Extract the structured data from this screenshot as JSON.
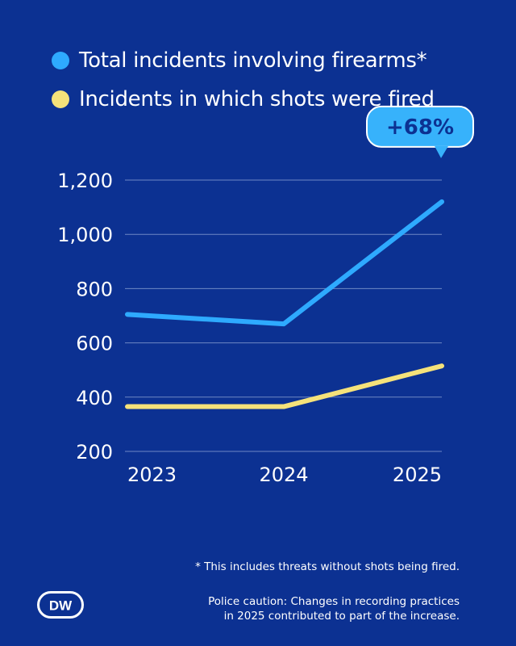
{
  "chart_data": {
    "type": "line",
    "x": [
      "2023",
      "2024",
      "2025"
    ],
    "series": [
      {
        "name": "Total incidents involving firearms*",
        "values": [
          705,
          670,
          1120
        ],
        "color": "#2eaaff"
      },
      {
        "name": "Incidents in which shots were fired",
        "values": [
          365,
          365,
          515
        ],
        "color": "#f5e27a"
      }
    ],
    "yticks": [
      "1,200",
      "1,000",
      "800",
      "600",
      "400",
      "200"
    ],
    "ytick_values": [
      1200,
      1000,
      800,
      600,
      400,
      200
    ],
    "ylim": [
      200,
      1300
    ],
    "grid": true,
    "legend_position": "top-left",
    "annotation": {
      "text": "+68%",
      "series_index": 0,
      "point_index": 2
    }
  },
  "footnote": "* This includes threats without shots being fired.",
  "caution": {
    "line1": "Police caution: Changes in recording practices",
    "line2": "in 2025 contributed to part of the increase."
  },
  "logo": {
    "text": "DW"
  }
}
